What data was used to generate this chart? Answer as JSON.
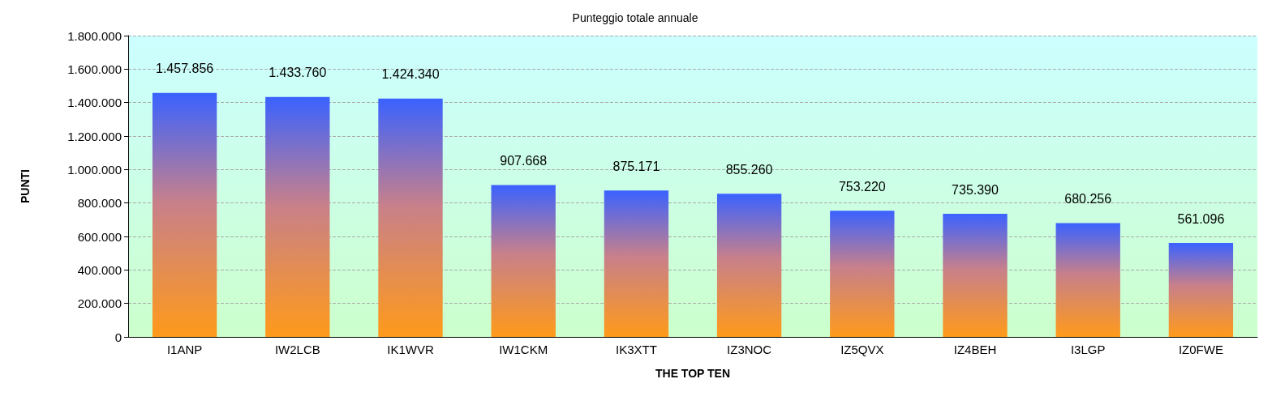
{
  "chart_data": {
    "type": "bar",
    "title": "Punteggio totale annuale",
    "xlabel": "THE TOP TEN",
    "ylabel": "PUNTI",
    "categories": [
      "I1ANP",
      "IW2LCB",
      "IK1WVR",
      "IW1CKM",
      "IK3XTT",
      "IZ3NOC",
      "IZ5QVX",
      "IZ4BEH",
      "I3LGP",
      "IZ0FWE"
    ],
    "values": [
      1457856,
      1433760,
      1424340,
      907668,
      875171,
      855260,
      753220,
      735390,
      680256,
      561096
    ],
    "value_labels": [
      "1.457.856",
      "1.433.760",
      "1.424.340",
      "907.668",
      "875.171",
      "855.260",
      "753.220",
      "735.390",
      "680.256",
      "561.096"
    ],
    "color": "#3a62ff",
    "ylim": [
      0,
      1800000
    ],
    "yticks": [
      0,
      {
        "value": 200000,
        "label": "200.000"
      },
      {
        "value": 400000,
        "label": "400.000"
      },
      {
        "value": 600000,
        "label": "600.000"
      },
      {
        "value": 800000,
        "label": "800.000"
      },
      {
        "value": 1000000,
        "label": "1.000.000"
      },
      {
        "value": 1200000,
        "label": "1.200.000"
      },
      {
        "value": 1400000,
        "label": "1.400.000"
      },
      {
        "value": 1600000,
        "label": "1.600.000"
      },
      {
        "value": 1800000,
        "label": "1.800.000"
      }
    ],
    "grid": "y"
  }
}
